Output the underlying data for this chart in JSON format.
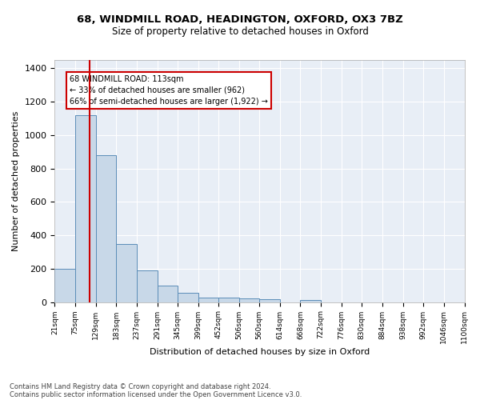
{
  "title1": "68, WINDMILL ROAD, HEADINGTON, OXFORD, OX3 7BZ",
  "title2": "Size of property relative to detached houses in Oxford",
  "xlabel": "Distribution of detached houses by size in Oxford",
  "ylabel": "Number of detached properties",
  "footer1": "Contains HM Land Registry data © Crown copyright and database right 2024.",
  "footer2": "Contains public sector information licensed under the Open Government Licence v3.0.",
  "annotation_line1": "68 WINDMILL ROAD: 113sqm",
  "annotation_line2": "← 33% of detached houses are smaller (962)",
  "annotation_line3": "66% of semi-detached houses are larger (1,922) →",
  "bin_edges": [
    21,
    75,
    129,
    183,
    237,
    291,
    345,
    399,
    452,
    506,
    560,
    614,
    668,
    722,
    776,
    830,
    884,
    938,
    992,
    1046,
    1100
  ],
  "bar_heights": [
    197,
    1120,
    880,
    350,
    190,
    100,
    55,
    25,
    25,
    20,
    15,
    0,
    12,
    0,
    0,
    0,
    0,
    0,
    0,
    0
  ],
  "bar_color": "#c8d8e8",
  "bar_edge_color": "#5b8db8",
  "property_size": 113,
  "vline_color": "#cc0000",
  "annotation_box_color": "#cc0000",
  "background_color": "#e8eef6",
  "grid_color": "#ffffff",
  "ylim": [
    0,
    1450
  ],
  "xlim": [
    21,
    1100
  ]
}
